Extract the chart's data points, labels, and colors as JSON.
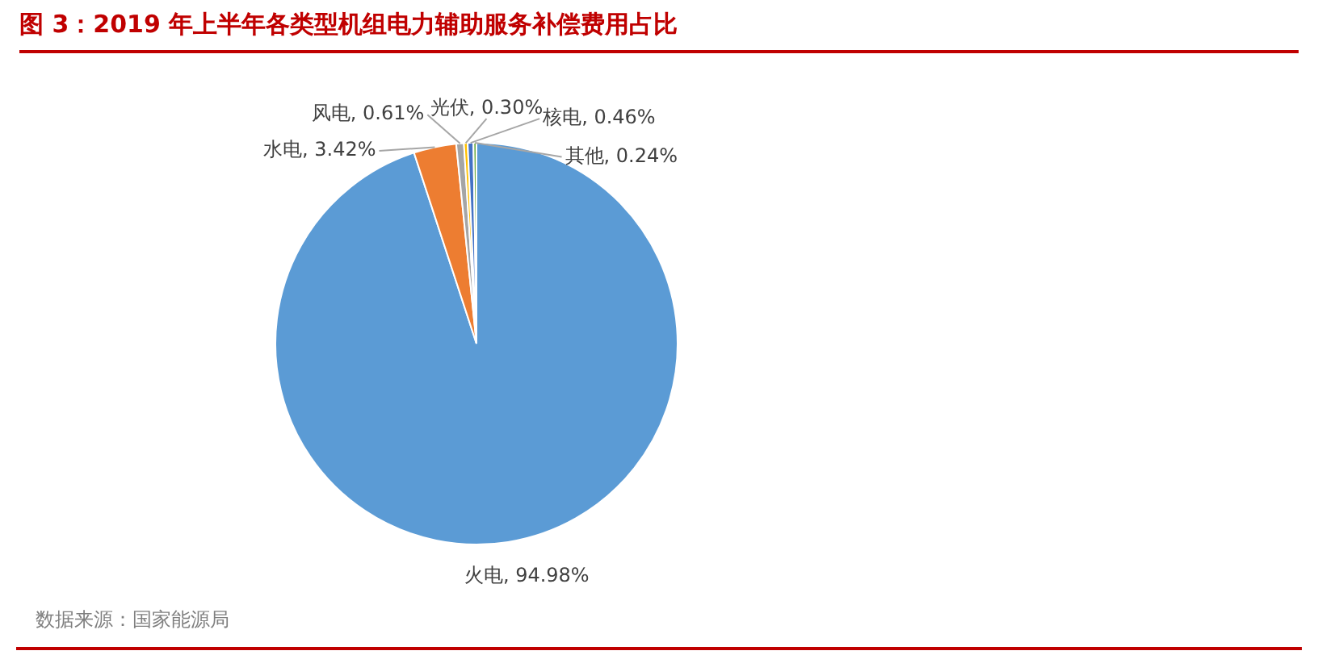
{
  "chart_data": {
    "type": "pie",
    "title": "图 3：2019 年上半年各类型机组电力辅助服务补偿费用占比",
    "categories": [
      "火电",
      "水电",
      "风电",
      "光伏",
      "核电",
      "其他"
    ],
    "values": [
      94.98,
      3.42,
      0.61,
      0.3,
      0.46,
      0.24
    ],
    "value_labels": [
      "94.98%",
      "3.42%",
      "0.61%",
      "0.30%",
      "0.46%",
      "0.24%"
    ],
    "colors": [
      "#5b9bd5",
      "#ed7d31",
      "#a5a5a5",
      "#ffc000",
      "#4472c4",
      "#70ad47"
    ],
    "legend": false,
    "annotations": [
      "数据来源：国家能源局"
    ]
  }
}
